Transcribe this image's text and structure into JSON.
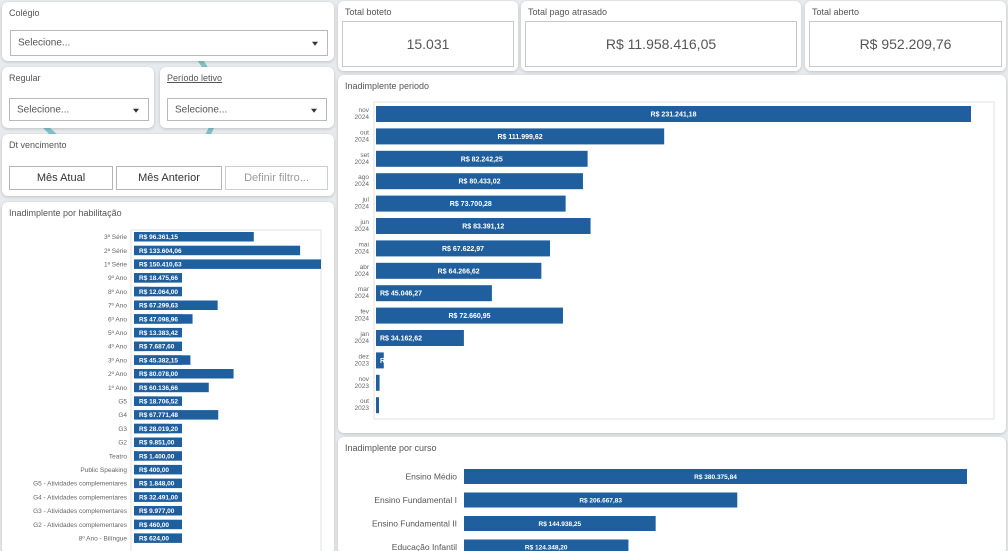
{
  "filters": {
    "colegio": {
      "title": "Colégio",
      "value": "Selecione..."
    },
    "regular": {
      "title": "Regular",
      "value": "Selecione..."
    },
    "periodo_letivo": {
      "title": "Período letivo",
      "value": "Selecione..."
    },
    "dt_vencimento": {
      "title": "Dt vencimento",
      "buttons": [
        "Mês Atual",
        "Mês Anterior",
        "Definir filtro..."
      ]
    }
  },
  "kpis": {
    "total_boleto": {
      "title": "Total boteto",
      "value": "15.031"
    },
    "total_pago_atrasado": {
      "title": "Total pago atrasado",
      "value": "R$ 11.958.416,05"
    },
    "total_aberto": {
      "title": "Total aberto",
      "value": "R$ 952.209,76"
    }
  },
  "colors": {
    "bar": "#1f5f9e",
    "panel_bg": "#ffffff",
    "page_bg": "#e8ebee"
  },
  "chart_data": [
    {
      "type": "bar",
      "orientation": "horizontal",
      "title": "Inadimplente periodo",
      "categories": [
        [
          "nov",
          "2024"
        ],
        [
          "out",
          "2024"
        ],
        [
          "set",
          "2024"
        ],
        [
          "ago",
          "2024"
        ],
        [
          "jul",
          "2024"
        ],
        [
          "jun",
          "2024"
        ],
        [
          "mai",
          "2024"
        ],
        [
          "abr",
          "2024"
        ],
        [
          "mar",
          "2024"
        ],
        [
          "fev",
          "2024"
        ],
        [
          "jan",
          "2024"
        ],
        [
          "dez",
          "2023"
        ],
        [
          "nov",
          "2023"
        ],
        [
          "out",
          "2023"
        ]
      ],
      "values": [
        231241.18,
        111999.62,
        82242.25,
        80433.02,
        73700.28,
        83391.12,
        67622.97,
        64266.62,
        45046.27,
        72660.95,
        34162.62,
        3022.75,
        1387.0,
        1033.11
      ],
      "labels": [
        "R$ 231.241,18",
        "R$ 111.999,62",
        "R$ 82.242,25",
        "R$ 80.433,02",
        "R$ 73.700,28",
        "R$ 83.391,12",
        "R$ 67.622,97",
        "R$ 64.266,62",
        "R$ 45.046,27",
        "R$ 72.660,95",
        "R$ 34.162,62",
        "R$ 3.022,75",
        "R$ 1.387,00",
        "R$ 1.033,11"
      ]
    },
    {
      "type": "bar",
      "orientation": "horizontal",
      "title": "Inadimplente por habilitação",
      "categories": [
        "3ª Série",
        "2ª Série",
        "1ª Série",
        "9º Ano",
        "8º Ano",
        "7º Ano",
        "6º Ano",
        "5º Ano",
        "4º Ano",
        "3º Ano",
        "2º Ano",
        "1º Ano",
        "G5",
        "G4",
        "G3",
        "G2",
        "Teatro",
        "Public Speaking",
        "G5 - Atividades complementares",
        "G4 - Atividades complementares",
        "G3 - Atividades complementares",
        "G2 - Atividades complementares",
        "8º Ano - Bilíngue"
      ],
      "values": [
        96361.15,
        133604.06,
        150410.63,
        18475.66,
        12064.0,
        67299.63,
        47098.96,
        13383.42,
        7687.6,
        45382.15,
        80078.0,
        60136.66,
        18706.52,
        67771.48,
        28019.2,
        9851.0,
        1400.0,
        400.0,
        1848.0,
        32491.0,
        9977.0,
        460.0,
        624.0
      ],
      "labels": [
        "R$ 96.361,15",
        "R$ 133.604,06",
        "R$ 150.410,63",
        "R$ 18.475,66",
        "R$ 12.064,00",
        "R$ 67.299,63",
        "R$ 47.098,96",
        "R$ 13.383,42",
        "R$ 7.687,60",
        "R$ 45.382,15",
        "R$ 80.078,00",
        "R$ 60.136,66",
        "R$ 18.706,52",
        "R$ 67.771,48",
        "R$ 28.019,20",
        "R$ 9.851,00",
        "R$ 1.400,00",
        "R$ 400,00",
        "R$ 1.848,00",
        "R$ 32.491,00",
        "R$ 9.977,00",
        "R$ 460,00",
        "R$ 624,00"
      ]
    },
    {
      "type": "bar",
      "orientation": "horizontal",
      "title": "Inadimplente por curso",
      "categories": [
        "Ensino Médio",
        "Ensino Fundamental I",
        "Ensino Fundamental II",
        "Educação Infantil"
      ],
      "values": [
        380375.84,
        206667.83,
        144938.25,
        124348.2
      ],
      "labels": [
        "R$ 380.375,84",
        "R$ 206.667,83",
        "R$ 144.938,25",
        "R$ 124.348,20"
      ]
    }
  ]
}
